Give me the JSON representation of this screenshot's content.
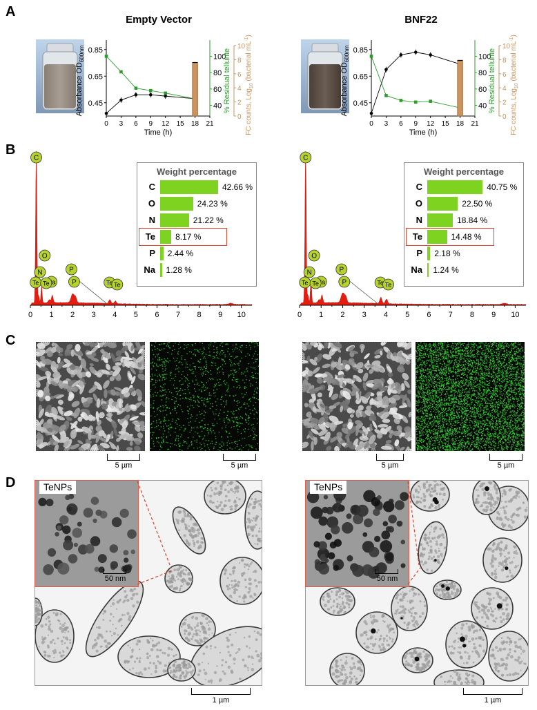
{
  "panels": {
    "a": "A",
    "b": "B",
    "c": "C",
    "d": "D"
  },
  "colors": {
    "absorbance": "#000000",
    "tellurite": "#2a9d2a",
    "fc": "#c8935f",
    "spectrum": "#e51c10",
    "bar": "#7ed321",
    "highlight": "#e0432f",
    "peak_marker": "#b6d22e"
  },
  "growth": {
    "xlabel": "Time (h)",
    "ylabel_left": "Absorbance OD",
    "ylabel_left_sub": "600nm",
    "ylabel_right1": "% Residual tellurite",
    "ylabel_right2": "FC counts, Log",
    "ylabel_right2_sub": "10",
    "ylabel_right2_tail": " (bacterial mL",
    "ylabel_right2_sup": "-1",
    "ylabel_right2_end": ")"
  },
  "sem_scale": "5 µm",
  "tem_scale": "1 µm",
  "inset_scale": "50 nm",
  "inset_label": "TeNPs",
  "wp_title": "Weight percentage",
  "chart_data": [
    {
      "type": "line",
      "title": "Empty Vector",
      "xlabel": "Time (h)",
      "xlim": [
        0,
        21
      ],
      "xticks": [
        0,
        3,
        6,
        9,
        12,
        15,
        18,
        21
      ],
      "ylim_left": [
        0.35,
        0.88
      ],
      "yticks_left": [
        0.45,
        0.65,
        0.85
      ],
      "ylim_right1": [
        27,
        113
      ],
      "yticks_right1": [
        40,
        60,
        80,
        100
      ],
      "ylim_right2": [
        0,
        10
      ],
      "yticks_right2": [
        0,
        2,
        4,
        6,
        8,
        10
      ],
      "series": [
        {
          "name": "Absorbance OD600nm",
          "axis": "left",
          "x": [
            0,
            3,
            6,
            9,
            12,
            18
          ],
          "y": [
            0.37,
            0.47,
            0.51,
            0.51,
            0.5,
            0.48
          ]
        },
        {
          "name": "% Residual tellurite",
          "axis": "right1",
          "x": [
            0,
            3,
            6,
            9,
            12,
            18
          ],
          "y": [
            100,
            81,
            61,
            58,
            55,
            48
          ]
        },
        {
          "name": "FC counts",
          "axis": "right2",
          "type": "bar",
          "x": [
            18
          ],
          "y": [
            7.5
          ]
        }
      ]
    },
    {
      "type": "line",
      "title": "BNF22",
      "xlabel": "Time (h)",
      "xlim": [
        0,
        21
      ],
      "xticks": [
        0,
        3,
        6,
        9,
        12,
        15,
        18,
        21
      ],
      "ylim_left": [
        0.35,
        0.88
      ],
      "yticks_left": [
        0.45,
        0.65,
        0.85
      ],
      "ylim_right1": [
        27,
        113
      ],
      "yticks_right1": [
        40,
        60,
        80,
        100
      ],
      "ylim_right2": [
        0,
        10
      ],
      "yticks_right2": [
        0,
        2,
        4,
        6,
        8,
        10
      ],
      "series": [
        {
          "name": "Absorbance OD600nm",
          "axis": "left",
          "x": [
            0,
            3,
            6,
            9,
            12,
            18
          ],
          "y": [
            0.37,
            0.7,
            0.81,
            0.83,
            0.81,
            0.74
          ]
        },
        {
          "name": "% Residual tellurite",
          "axis": "right1",
          "x": [
            0,
            3,
            6,
            9,
            12,
            18
          ],
          "y": [
            100,
            52,
            46,
            44,
            45,
            37
          ]
        },
        {
          "name": "FC counts",
          "axis": "right2",
          "type": "bar",
          "x": [
            18
          ],
          "y": [
            7.8
          ]
        }
      ]
    },
    {
      "type": "area",
      "xlim": [
        0,
        10.5
      ],
      "xticks": [
        0,
        1,
        2,
        3,
        4,
        5,
        6,
        7,
        8,
        9,
        10
      ],
      "peaks": [
        {
          "label": "C",
          "x": 0.28,
          "h": 1.0
        },
        {
          "label": "O",
          "x": 0.53,
          "h": 0.22
        },
        {
          "label": "N",
          "x": 0.39,
          "h": 0.12
        },
        {
          "label": "Te",
          "x": 0.55,
          "h": 0.09
        },
        {
          "label": "Na",
          "x": 1.04,
          "h": 0.07
        },
        {
          "label": "P",
          "x": 2.01,
          "h": 0.09
        },
        {
          "label": "Te",
          "x": 3.77,
          "h": 0.05
        },
        {
          "label": "Te",
          "x": 4.03,
          "h": 0.035
        }
      ],
      "weight_percentage": [
        {
          "element": "C",
          "value": 42.66,
          "label": "42.66 %"
        },
        {
          "element": "O",
          "value": 24.23,
          "label": "24.23 %"
        },
        {
          "element": "N",
          "value": 21.22,
          "label": "21.22 %"
        },
        {
          "element": "Te",
          "value": 8.17,
          "label": "8.17 %"
        },
        {
          "element": "P",
          "value": 2.44,
          "label": "2.44 %"
        },
        {
          "element": "Na",
          "value": 1.28,
          "label": "1.28 %"
        }
      ]
    },
    {
      "type": "area",
      "xlim": [
        0,
        10.5
      ],
      "xticks": [
        0,
        1,
        2,
        3,
        4,
        5,
        6,
        7,
        8,
        9,
        10
      ],
      "peaks": [
        {
          "label": "C",
          "x": 0.28,
          "h": 1.0
        },
        {
          "label": "O",
          "x": 0.53,
          "h": 0.3
        },
        {
          "label": "N",
          "x": 0.39,
          "h": 0.14
        },
        {
          "label": "Te",
          "x": 0.55,
          "h": 0.11
        },
        {
          "label": "Na",
          "x": 1.04,
          "h": 0.08
        },
        {
          "label": "P",
          "x": 2.01,
          "h": 0.1
        },
        {
          "label": "Te",
          "x": 3.77,
          "h": 0.08
        },
        {
          "label": "Te",
          "x": 4.03,
          "h": 0.06
        }
      ],
      "weight_percentage": [
        {
          "element": "C",
          "value": 40.75,
          "label": "40.75 %"
        },
        {
          "element": "O",
          "value": 22.5,
          "label": "22.50 %"
        },
        {
          "element": "N",
          "value": 18.84,
          "label": "18.84 %"
        },
        {
          "element": "Te",
          "value": 14.48,
          "label": "14.48 %"
        },
        {
          "element": "P",
          "value": 2.18,
          "label": "2.18 %"
        },
        {
          "element": "Na",
          "value": 1.24,
          "label": "1.24 %"
        }
      ]
    }
  ]
}
